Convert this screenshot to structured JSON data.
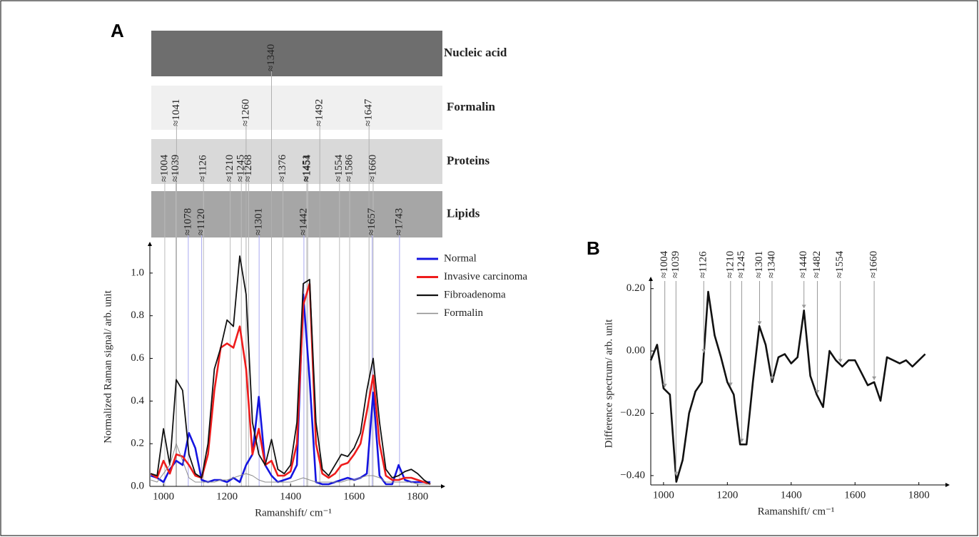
{
  "chart_data": [
    {
      "type": "line",
      "panel": "A",
      "bands": [
        {
          "name": "Nucleic acid",
          "color": "#6e6e6e",
          "line_color": "#b0b0b0",
          "peaks": [
            {
              "value": 1340,
              "label": "≈1340"
            }
          ]
        },
        {
          "name": "Formalin",
          "color": "#f0f0f0",
          "line_color": "#b0b0b0",
          "peaks": [
            {
              "value": 1041,
              "label": "≈1041"
            },
            {
              "value": 1260,
              "label": "≈1260"
            },
            {
              "value": 1492,
              "label": "≈1492"
            },
            {
              "value": 1647,
              "label": "≈1647"
            }
          ]
        },
        {
          "name": "Proteins",
          "color": "#d9d9d9",
          "line_color": "#bbbbbb",
          "peaks": [
            {
              "value": 1004,
              "label": "≈1004"
            },
            {
              "value": 1039,
              "label": "≈1039"
            },
            {
              "value": 1126,
              "label": "≈1126"
            },
            {
              "value": 1210,
              "label": "≈1210"
            },
            {
              "value": 1245,
              "label": "≈1245"
            },
            {
              "value": 1268,
              "label": "≈1268"
            },
            {
              "value": 1376,
              "label": "≈1376"
            },
            {
              "value": 1451,
              "label": "≈1451"
            },
            {
              "value": 1454,
              "label": "≈1454"
            },
            {
              "value": 1554,
              "label": "≈1554"
            },
            {
              "value": 1586,
              "label": "≈1586"
            },
            {
              "value": 1660,
              "label": "≈1660"
            }
          ]
        },
        {
          "name": "Lipids",
          "color": "#a6a6a6",
          "line_color": "#a9a9f0",
          "peaks": [
            {
              "value": 1078,
              "label": "≈1078"
            },
            {
              "value": 1120,
              "label": "≈1120"
            },
            {
              "value": 1301,
              "label": "≈1301"
            },
            {
              "value": 1442,
              "label": "≈1442"
            },
            {
              "value": 1657,
              "label": "≈1657"
            },
            {
              "value": 1743,
              "label": "≈1743"
            }
          ]
        }
      ],
      "x": [
        960,
        980,
        1000,
        1020,
        1040,
        1060,
        1080,
        1100,
        1120,
        1140,
        1160,
        1180,
        1200,
        1220,
        1240,
        1260,
        1280,
        1300,
        1320,
        1340,
        1360,
        1380,
        1400,
        1420,
        1440,
        1460,
        1480,
        1500,
        1520,
        1540,
        1560,
        1580,
        1600,
        1620,
        1640,
        1660,
        1680,
        1700,
        1720,
        1740,
        1760,
        1780,
        1800,
        1820,
        1840
      ],
      "series": [
        {
          "name": "Normal",
          "color": "#1515e0",
          "line_width": 2.6,
          "values": [
            0.05,
            0.04,
            0.02,
            0.08,
            0.12,
            0.1,
            0.25,
            0.18,
            0.03,
            0.02,
            0.03,
            0.03,
            0.02,
            0.04,
            0.02,
            0.1,
            0.15,
            0.42,
            0.1,
            0.05,
            0.02,
            0.03,
            0.04,
            0.1,
            0.9,
            0.5,
            0.02,
            0.01,
            0.01,
            0.02,
            0.03,
            0.04,
            0.03,
            0.04,
            0.06,
            0.44,
            0.05,
            0.01,
            0.01,
            0.1,
            0.03,
            0.02,
            0.02,
            0.02,
            0.02
          ]
        },
        {
          "name": "Invasive carcinoma",
          "color": "#ee1c1c",
          "line_width": 2.6,
          "values": [
            0.06,
            0.04,
            0.12,
            0.06,
            0.15,
            0.14,
            0.1,
            0.05,
            0.04,
            0.15,
            0.45,
            0.65,
            0.67,
            0.65,
            0.75,
            0.55,
            0.15,
            0.27,
            0.1,
            0.12,
            0.05,
            0.05,
            0.07,
            0.2,
            0.85,
            0.95,
            0.2,
            0.06,
            0.04,
            0.06,
            0.1,
            0.11,
            0.15,
            0.2,
            0.35,
            0.52,
            0.2,
            0.05,
            0.03,
            0.03,
            0.04,
            0.04,
            0.03,
            0.02,
            0.01
          ]
        },
        {
          "name": "Fibroadenoma",
          "color": "#111111",
          "line_width": 1.8,
          "values": [
            0.06,
            0.05,
            0.27,
            0.1,
            0.5,
            0.45,
            0.15,
            0.06,
            0.04,
            0.2,
            0.55,
            0.65,
            0.78,
            0.75,
            1.08,
            0.9,
            0.3,
            0.15,
            0.1,
            0.22,
            0.08,
            0.06,
            0.1,
            0.3,
            0.95,
            0.97,
            0.3,
            0.08,
            0.05,
            0.1,
            0.15,
            0.14,
            0.18,
            0.25,
            0.45,
            0.6,
            0.3,
            0.08,
            0.04,
            0.05,
            0.07,
            0.08,
            0.06,
            0.03,
            0.01
          ]
        },
        {
          "name": "Formalin",
          "color": "#8c8c8c",
          "line_width": 1,
          "values": [
            0.03,
            0.02,
            0.06,
            0.1,
            0.2,
            0.12,
            0.04,
            0.02,
            0.02,
            0.02,
            0.02,
            0.03,
            0.03,
            0.04,
            0.05,
            0.06,
            0.05,
            0.03,
            0.02,
            0.02,
            0.02,
            0.02,
            0.02,
            0.03,
            0.04,
            0.03,
            0.02,
            0.02,
            0.02,
            0.02,
            0.02,
            0.03,
            0.03,
            0.04,
            0.05,
            0.05,
            0.04,
            0.02,
            0.02,
            0.02,
            0.02,
            0.02,
            0.01,
            0.01,
            0.01
          ]
        }
      ],
      "xlim": [
        957,
        1860
      ],
      "ylim": [
        0,
        1.12
      ],
      "xticks": [
        1000,
        1200,
        1400,
        1600,
        1800
      ],
      "yticks": [
        {
          "value": 0,
          "label": "0.0"
        },
        0.2,
        0.4,
        0.6,
        0.8,
        {
          "value": 1,
          "label": "1.0"
        }
      ],
      "xlabel": "Ramanshift/ cm⁻¹",
      "ylabel": "Normalized Raman signal/ arb. unit",
      "legend": "upper right"
    },
    {
      "type": "line",
      "panel": "B",
      "peaks": [
        {
          "value": 1004,
          "label": "≈1004"
        },
        {
          "value": 1039,
          "label": "≈1039"
        },
        {
          "value": 1126,
          "label": "≈1126"
        },
        {
          "value": 1210,
          "label": "≈1210"
        },
        {
          "value": 1245,
          "label": "≈1245"
        },
        {
          "value": 1301,
          "label": "≈1301"
        },
        {
          "value": 1340,
          "label": "≈1340"
        },
        {
          "value": 1440,
          "label": "≈1440"
        },
        {
          "value": 1482,
          "label": "≈1482"
        },
        {
          "value": 1554,
          "label": "≈1554"
        },
        {
          "value": 1660,
          "label": "≈1660"
        }
      ],
      "x": [
        960,
        980,
        1000,
        1020,
        1040,
        1060,
        1080,
        1100,
        1120,
        1140,
        1160,
        1180,
        1200,
        1220,
        1240,
        1260,
        1280,
        1300,
        1320,
        1340,
        1360,
        1380,
        1400,
        1420,
        1440,
        1460,
        1480,
        1500,
        1520,
        1540,
        1560,
        1580,
        1600,
        1620,
        1640,
        1660,
        1680,
        1700,
        1720,
        1740,
        1760,
        1780,
        1800,
        1820
      ],
      "series": [
        {
          "color": "#111111",
          "line_width": 2.6,
          "values": [
            -0.03,
            0.02,
            -0.12,
            -0.14,
            -0.42,
            -0.35,
            -0.2,
            -0.13,
            -0.1,
            0.19,
            0.05,
            -0.02,
            -0.1,
            -0.14,
            -0.3,
            -0.3,
            -0.1,
            0.08,
            0.02,
            -0.1,
            -0.02,
            -0.01,
            -0.04,
            -0.02,
            0.13,
            -0.08,
            -0.14,
            -0.18,
            0.0,
            -0.03,
            -0.05,
            -0.03,
            -0.03,
            -0.07,
            -0.11,
            -0.1,
            -0.16,
            -0.02,
            -0.03,
            -0.04,
            -0.03,
            -0.05,
            -0.03,
            -0.01
          ]
        }
      ],
      "xlim": [
        960,
        1870
      ],
      "ylim": [
        -0.43,
        0.22
      ],
      "xticks": [
        1000,
        1200,
        1400,
        1600,
        1800
      ],
      "yticks": [
        {
          "value": 0.2,
          "label": "0.20"
        },
        {
          "value": 0,
          "label": "0.00"
        },
        {
          "value": -0.2,
          "label": "−0.20"
        },
        {
          "value": -0.4,
          "label": "−0.40"
        }
      ],
      "xlabel": "Ramanshift/ cm⁻¹",
      "ylabel": "Difference spectrum/ arb. unit"
    }
  ]
}
